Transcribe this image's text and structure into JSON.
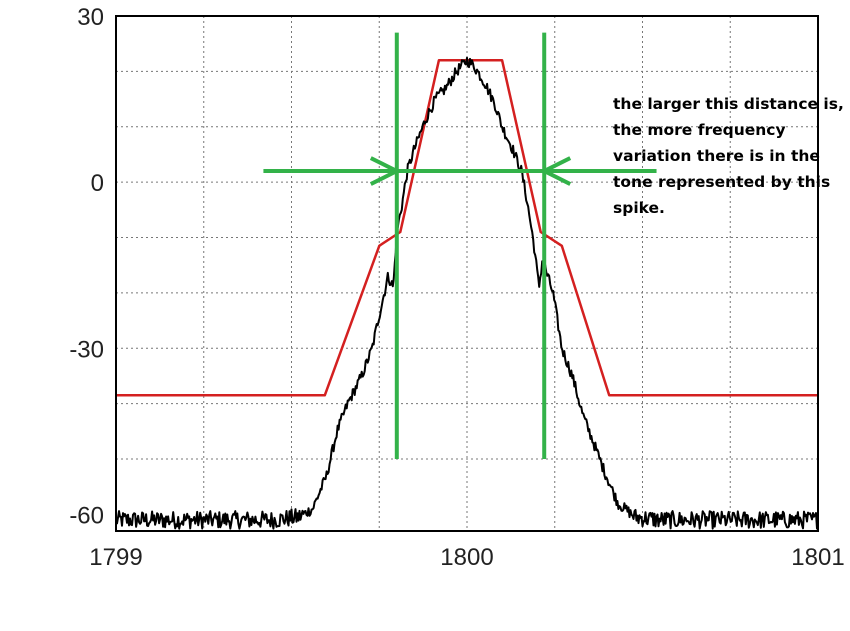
{
  "chart_data": {
    "type": "line",
    "title": "",
    "xlabel": "",
    "ylabel": "",
    "xlim": [
      1799,
      1801
    ],
    "ylim": [
      -63,
      30
    ],
    "x_ticks": [
      1799,
      1800,
      1801
    ],
    "x_tick_labels": [
      "1799",
      "1800",
      "1801"
    ],
    "y_ticks": [
      30,
      0,
      -30,
      -60
    ],
    "y_tick_labels": [
      "30",
      "0",
      "-30",
      "-60"
    ],
    "x_grid": [
      1799.25,
      1799.5,
      1799.75,
      1800.0,
      1800.25,
      1800.5,
      1800.75
    ],
    "y_grid": [
      20,
      10,
      0,
      -10,
      -20,
      -30,
      -40,
      -50
    ],
    "grid": true,
    "series": [
      {
        "role": "spectral mask",
        "color": "#d42020",
        "x": [
          1799.0,
          1799.595,
          1799.75,
          1799.81,
          1799.92,
          1800.1,
          1800.21,
          1800.27,
          1800.405,
          1801.0
        ],
        "y": [
          -38.5,
          -38.5,
          -11.5,
          -9,
          22,
          22,
          -9,
          -11.5,
          -38.5,
          -38.5
        ]
      },
      {
        "role": "measured spectrum",
        "color": "#000000",
        "noise_floor": -61,
        "x": [
          1799.0,
          1799.45,
          1799.52,
          1799.56,
          1799.6,
          1799.63,
          1799.66,
          1799.7,
          1799.73,
          1799.75,
          1799.775,
          1799.79,
          1799.8,
          1799.815,
          1799.83,
          1799.85,
          1799.88,
          1799.91,
          1799.94,
          1799.97,
          1800.0,
          1800.02,
          1800.05,
          1800.08,
          1800.1,
          1800.13,
          1800.155,
          1800.17,
          1800.19,
          1800.205,
          1800.215,
          1800.225,
          1800.245,
          1800.27,
          1800.3,
          1800.33,
          1800.36,
          1800.39,
          1800.43,
          1800.48,
          1800.55,
          1801.0
        ],
        "y": [
          -61,
          -61,
          -60.5,
          -59,
          -53,
          -45,
          -40,
          -35,
          -30,
          -24,
          -17,
          -19,
          -9,
          -4,
          2,
          6,
          11,
          15,
          17,
          20,
          22,
          21,
          18,
          14,
          10,
          6,
          2,
          -3,
          -11,
          -19,
          -14,
          -16,
          -20,
          -30,
          -35,
          -42,
          -47,
          -52,
          -58,
          -60.5,
          -61,
          -61
        ]
      }
    ],
    "annotations": [
      {
        "type": "vertical-line",
        "x": 1799.8,
        "y_range": [
          -50,
          27
        ],
        "color": "#33b249"
      },
      {
        "type": "vertical-line",
        "x": 1800.22,
        "y_range": [
          -50,
          27
        ],
        "color": "#33b249"
      },
      {
        "type": "horizontal-line",
        "y": 2,
        "x_range": [
          1799.42,
          1800.54
        ],
        "color": "#33b249"
      },
      {
        "type": "arrow",
        "direction": "right",
        "x": 1799.8,
        "y": 2,
        "color": "#33b249"
      },
      {
        "type": "arrow",
        "direction": "left",
        "x": 1800.22,
        "y": 2,
        "color": "#33b249"
      }
    ]
  },
  "annotation_text": "the larger this distance is, the more frequency variation there is in the tone represented by this spike.",
  "colors": {
    "mask": "#d42020",
    "spectrum": "#000000",
    "marker": "#33b249",
    "frame": "#000000",
    "grid": "#777777"
  }
}
